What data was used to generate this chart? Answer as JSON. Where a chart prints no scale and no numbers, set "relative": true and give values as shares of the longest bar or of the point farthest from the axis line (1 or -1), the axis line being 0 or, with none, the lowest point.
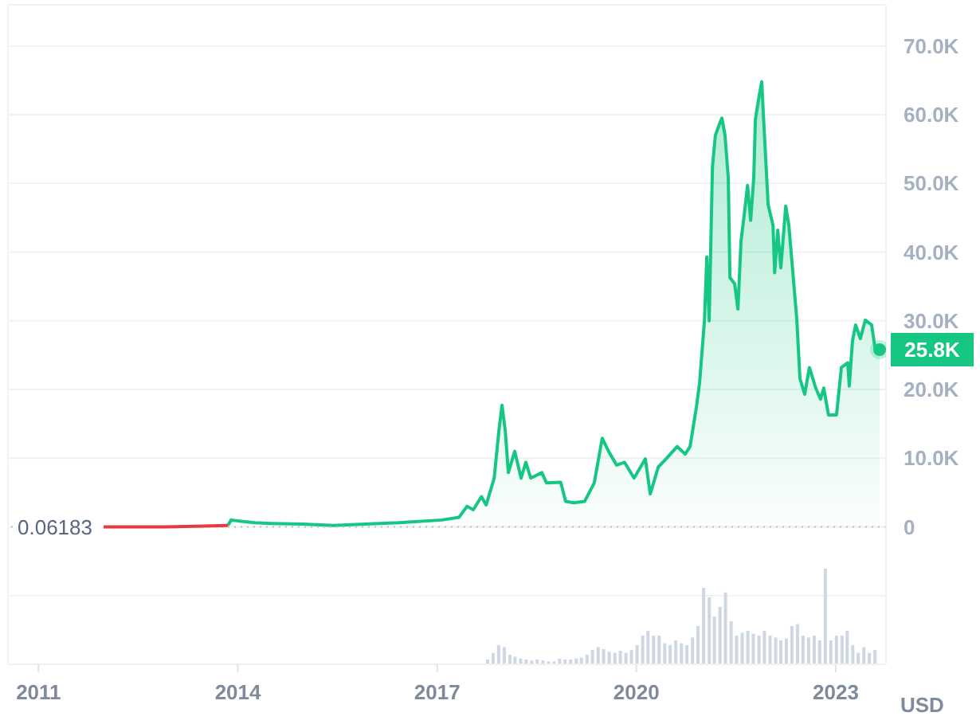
{
  "chart_data": [
    {
      "type": "area",
      "ylabel": "USD",
      "xlim": [
        "2010-07-17",
        "2023-10-04"
      ],
      "ylim": [
        -20000,
        76000
      ],
      "yticks": [
        {
          "value": -10000,
          "label": null
        },
        0,
        {
          "value": 10000,
          "label": "10.0K"
        },
        {
          "value": 20000,
          "label": "20.0K"
        },
        {
          "value": 30000,
          "label": "30.0K"
        },
        {
          "value": 40000,
          "label": "40.0K"
        },
        {
          "value": 50000,
          "label": "50.0K"
        },
        {
          "value": 60000,
          "label": "60.0K"
        },
        {
          "value": 70000,
          "label": "70.0K"
        }
      ],
      "grid": "y",
      "tick_labels": "y",
      "ref_lines": [
        {
          "axis": "y",
          "value": 0.06183,
          "label": "0.06183",
          "color": "#b8bfcc",
          "line_style": "dotted"
        }
      ],
      "series": [
        {
          "type": "line",
          "color": "#ea3943",
          "x": [
            "2011-12-25",
            "2012-12-01",
            "2013-11-07"
          ],
          "values": [
            0,
            0,
            200
          ]
        },
        {
          "color": "#16c784",
          "x": [
            "2013-11-07",
            "2013-11-25",
            "2014-01-20",
            "2014-04-05",
            "2014-07-01",
            "2014-12-25",
            "2015-06-10",
            "2015-12-01",
            "2016-06-01",
            "2017-01-25",
            "2017-05-01",
            "2017-06-14",
            "2017-07-18",
            "2017-09-01",
            "2017-09-27",
            "2017-11-10",
            "2017-12-06",
            "2017-12-23",
            "2018-01-10",
            "2018-01-27",
            "2018-03-03",
            "2018-04-07",
            "2018-05-03",
            "2018-05-30",
            "2018-07-30",
            "2018-08-25",
            "2018-11-11",
            "2018-12-08",
            "2019-01-21",
            "2019-03-22",
            "2019-05-14",
            "2019-06-27",
            "2019-08-01",
            "2019-09-14",
            "2019-10-28",
            "2019-12-19",
            "2020-02-19",
            "2020-03-17",
            "2020-04-30",
            "2020-06-12",
            "2020-08-12",
            "2020-09-25",
            "2020-10-22",
            "2020-11-26",
            "2020-12-13",
            "2021-01-09",
            "2021-01-22",
            "2021-02-04",
            "2021-02-22",
            "2021-03-10",
            "2021-04-05",
            "2021-04-15",
            "2021-05-02",
            "2021-05-20",
            "2021-05-29",
            "2021-06-24",
            "2021-07-12",
            "2021-07-29",
            "2021-08-16",
            "2021-09-03",
            "2021-09-20",
            "2021-10-07",
            "2021-10-16",
            "2021-11-03",
            "2021-11-20",
            "2021-11-29",
            "2021-12-25",
            "2022-01-21",
            "2022-01-30",
            "2022-02-16",
            "2022-03-05",
            "2022-04-01",
            "2022-04-18",
            "2022-05-05",
            "2022-06-01",
            "2022-06-18",
            "2022-07-14",
            "2022-08-09",
            "2022-09-13",
            "2022-10-09",
            "2022-10-27",
            "2022-11-22",
            "2023-01-05",
            "2023-02-01",
            "2023-03-08",
            "2023-03-16",
            "2023-04-03",
            "2023-04-20",
            "2023-05-16",
            "2023-06-12",
            "2023-07-17",
            "2023-08-04",
            "2023-08-30"
          ],
          "values": [
            200,
            1000,
            800,
            600,
            500,
            400,
            200,
            400,
            600,
            1000,
            1400,
            3000,
            2500,
            4400,
            3200,
            7100,
            14000,
            17700,
            14000,
            7900,
            11000,
            7100,
            9400,
            7100,
            7900,
            6400,
            6500,
            3700,
            3500,
            3700,
            6400,
            12900,
            11000,
            9000,
            9400,
            7100,
            9900,
            4800,
            8700,
            9900,
            11700,
            10600,
            11700,
            17500,
            20900,
            30000,
            39300,
            30000,
            52400,
            57000,
            58900,
            59500,
            57000,
            50800,
            36300,
            35400,
            31700,
            41600,
            45500,
            49700,
            44600,
            50800,
            59300,
            62300,
            64800,
            60000,
            46900,
            43900,
            37000,
            43200,
            37700,
            46700,
            43900,
            38600,
            30100,
            21600,
            19300,
            23200,
            20200,
            18600,
            20200,
            16300,
            16300,
            23200,
            23900,
            20500,
            27100,
            29400,
            27400,
            30100,
            29400,
            26200,
            25800
          ]
        },
        {
          "type": "scatter",
          "color": "#16c784",
          "marker": "circle",
          "x": [
            "2023-08-30"
          ],
          "values": [
            25800
          ],
          "value_labels": [
            "25.8K"
          ]
        }
      ]
    },
    {
      "type": "bar",
      "relative": true,
      "color": "#cfd6e4",
      "tick_labels": "x",
      "xlim": [
        "2010-07-17",
        "2023-10-04"
      ],
      "xticks": [
        "2011",
        "2014",
        "2017",
        "2020",
        "2023"
      ],
      "x": [
        "2017-10",
        "2017-11",
        "2017-12",
        "2018-01",
        "2018-02",
        "2018-03",
        "2018-04",
        "2018-05",
        "2018-06",
        "2018-07",
        "2018-08",
        "2018-09",
        "2018-10",
        "2018-11",
        "2018-12",
        "2019-01",
        "2019-02",
        "2019-03",
        "2019-04",
        "2019-05",
        "2019-06",
        "2019-07",
        "2019-08",
        "2019-09",
        "2019-10",
        "2019-11",
        "2019-12",
        "2020-01",
        "2020-02",
        "2020-03",
        "2020-04",
        "2020-05",
        "2020-06",
        "2020-07",
        "2020-08",
        "2020-09",
        "2020-10",
        "2020-11",
        "2020-12",
        "2021-01",
        "2021-02",
        "2021-03",
        "2021-04",
        "2021-05",
        "2021-06",
        "2021-07",
        "2021-08",
        "2021-09",
        "2021-10",
        "2021-11",
        "2021-12",
        "2022-01",
        "2022-02",
        "2022-03",
        "2022-04",
        "2022-05",
        "2022-06",
        "2022-07",
        "2022-08",
        "2022-09",
        "2022-10",
        "2022-11",
        "2022-12",
        "2023-01",
        "2023-02",
        "2023-03",
        "2023-04",
        "2023-05",
        "2023-06",
        "2023-07",
        "2023-08"
      ],
      "values": [
        0.05,
        0.12,
        0.2,
        0.18,
        0.1,
        0.08,
        0.06,
        0.05,
        0.04,
        0.05,
        0.04,
        0.03,
        0.03,
        0.06,
        0.05,
        0.05,
        0.06,
        0.07,
        0.1,
        0.15,
        0.18,
        0.16,
        0.13,
        0.12,
        0.14,
        0.12,
        0.15,
        0.2,
        0.3,
        0.35,
        0.3,
        0.3,
        0.22,
        0.2,
        0.25,
        0.22,
        0.2,
        0.28,
        0.4,
        0.8,
        0.7,
        0.5,
        0.6,
        0.75,
        0.45,
        0.3,
        0.33,
        0.35,
        0.32,
        0.3,
        0.35,
        0.3,
        0.28,
        0.25,
        0.27,
        0.4,
        0.42,
        0.3,
        0.28,
        0.3,
        0.25,
        1,
        0.25,
        0.3,
        0.3,
        0.35,
        0.2,
        0.12,
        0.18,
        0.12,
        0.15
      ]
    }
  ]
}
